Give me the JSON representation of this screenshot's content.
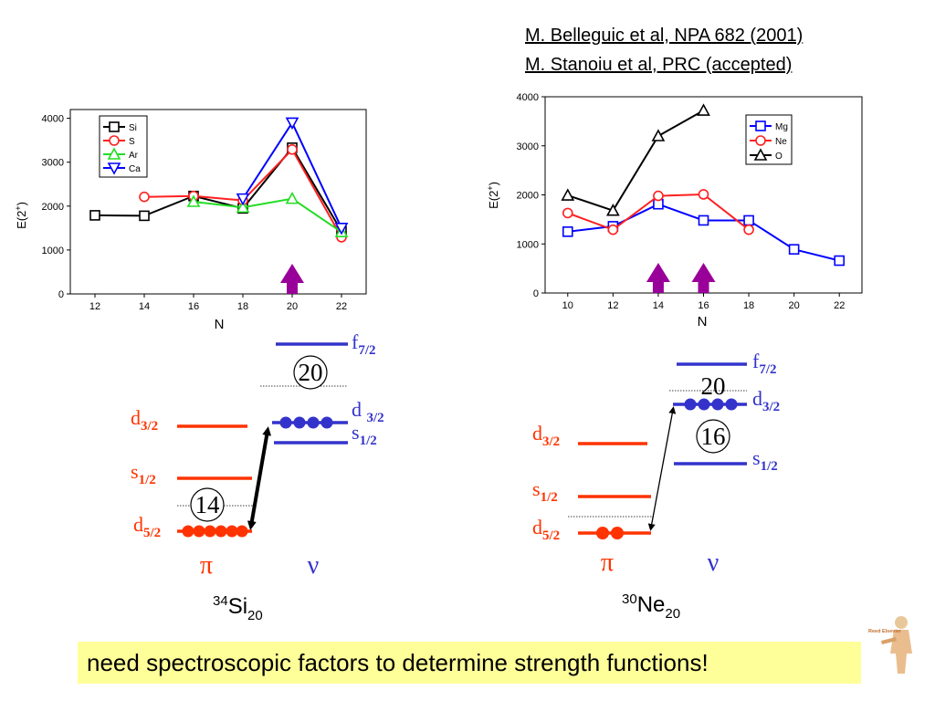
{
  "references": [
    "M. Belleguic et al, NPA 682 (2001)",
    "M. Stanoiu et al, PRC (accepted)"
  ],
  "banner_text": "need spectroscopic factors to determine strength functions!",
  "logo_text": "Reed Elsevier",
  "chart_data": [
    {
      "type": "line",
      "xlabel": "N",
      "ylabel_main": "E(2",
      "ylabel_sup": "+",
      "ylabel_end": ")",
      "xlim": [
        11,
        23
      ],
      "ylim": [
        0,
        4200
      ],
      "xticks": [
        12,
        14,
        16,
        18,
        20,
        22
      ],
      "yticks": [
        0,
        1000,
        2000,
        3000,
        4000
      ],
      "legend_position": "top-left",
      "arrow_at": [
        20
      ],
      "series": [
        {
          "name": "Si",
          "color": "#000000",
          "marker": "square",
          "x": [
            12,
            14,
            16,
            18,
            20,
            22
          ],
          "y": [
            1790,
            1780,
            2230,
            1950,
            3330,
            1430
          ]
        },
        {
          "name": "S",
          "color": "#ff2020",
          "marker": "circle",
          "x": [
            14,
            16,
            18,
            20,
            22
          ],
          "y": [
            2210,
            2230,
            2130,
            3290,
            1290
          ]
        },
        {
          "name": "Ar",
          "color": "#22dd22",
          "marker": "triangle-up",
          "x": [
            16,
            18,
            20,
            22
          ],
          "y": [
            2100,
            1970,
            2170,
            1410
          ]
        },
        {
          "name": "Ca",
          "color": "#0000ff",
          "marker": "triangle-down",
          "x": [
            18,
            20,
            22
          ],
          "y": [
            2170,
            3900,
            1500
          ]
        }
      ]
    },
    {
      "type": "line",
      "xlabel": "N",
      "ylabel_main": "E(2",
      "ylabel_sup": "+",
      "ylabel_end": ")",
      "xlim": [
        9,
        23
      ],
      "ylim": [
        0,
        4000
      ],
      "xticks": [
        10,
        12,
        14,
        16,
        18,
        20,
        22
      ],
      "yticks": [
        0,
        1000,
        2000,
        3000,
        4000
      ],
      "legend_position": "right",
      "arrow_at": [
        14,
        16
      ],
      "series": [
        {
          "name": "Mg",
          "color": "#0000ff",
          "marker": "square",
          "x": [
            10,
            12,
            14,
            16,
            18,
            20,
            22
          ],
          "y": [
            1250,
            1360,
            1810,
            1480,
            1480,
            890,
            660
          ]
        },
        {
          "name": "Ne",
          "color": "#ff2020",
          "marker": "circle",
          "x": [
            10,
            12,
            14,
            16,
            18
          ],
          "y": [
            1630,
            1290,
            1980,
            2010,
            1290
          ]
        },
        {
          "name": "O",
          "color": "#000000",
          "marker": "triangle-up",
          "x": [
            10,
            12,
            14,
            16
          ],
          "y": [
            1990,
            1680,
            3200,
            3720
          ]
        }
      ]
    }
  ],
  "level_schemes": [
    {
      "nucleus_mass": "34",
      "nucleus_symbol": "Si",
      "nucleus_n": "20",
      "proton_symbol": "π",
      "neutron_symbol": "ν",
      "gap_labels": [
        "20",
        "14"
      ],
      "proton_levels": [
        {
          "main": "d",
          "sub": "3/2"
        },
        {
          "main": "s",
          "sub": "1/2"
        },
        {
          "main": "d",
          "sub": "5/2"
        }
      ],
      "neutron_levels": [
        {
          "main": "f",
          "sub": "7/2"
        },
        {
          "main": "d ",
          "sub": "3/2"
        },
        {
          "main": "s",
          "sub": "1/2"
        }
      ]
    },
    {
      "nucleus_mass": "30",
      "nucleus_symbol": "Ne",
      "nucleus_n": "20",
      "proton_symbol": "π",
      "neutron_symbol": "ν",
      "gap_labels": [
        "20",
        "16"
      ],
      "proton_levels": [
        {
          "main": "d",
          "sub": "3/2"
        },
        {
          "main": "s",
          "sub": "1/2"
        },
        {
          "main": "d",
          "sub": "5/2"
        }
      ],
      "neutron_levels": [
        {
          "main": "f",
          "sub": "7/2"
        },
        {
          "main": "d",
          "sub": "3/2"
        },
        {
          "main": "s",
          "sub": "1/2"
        }
      ]
    }
  ]
}
